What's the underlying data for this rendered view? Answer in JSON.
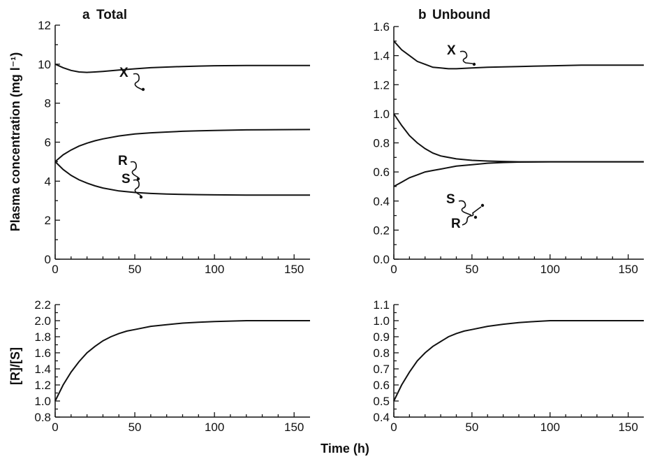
{
  "chart_data": [
    {
      "id": "a-top",
      "type": "line",
      "panel_letter": "a",
      "title": "Total",
      "ylabel": "Plasma concentration (mg l⁻¹)",
      "xlim": [
        0,
        160
      ],
      "ylim": [
        0,
        12
      ],
      "x_ticks": [
        0,
        50,
        100,
        150
      ],
      "y_ticks": [
        0,
        2,
        4,
        6,
        8,
        10,
        12
      ],
      "grid": false,
      "series": [
        {
          "name": "X",
          "x": [
            0,
            5,
            10,
            15,
            20,
            25,
            30,
            40,
            50,
            60,
            70,
            80,
            90,
            100,
            120,
            140,
            160
          ],
          "y": [
            10.0,
            9.82,
            9.68,
            9.6,
            9.58,
            9.6,
            9.63,
            9.7,
            9.76,
            9.82,
            9.85,
            9.88,
            9.9,
            9.92,
            9.93,
            9.93,
            9.93
          ]
        },
        {
          "name": "R",
          "x": [
            0,
            5,
            10,
            15,
            20,
            25,
            30,
            40,
            50,
            60,
            70,
            80,
            90,
            100,
            120,
            140,
            160
          ],
          "y": [
            5.0,
            5.35,
            5.6,
            5.8,
            5.95,
            6.07,
            6.17,
            6.32,
            6.42,
            6.48,
            6.52,
            6.56,
            6.58,
            6.6,
            6.63,
            6.64,
            6.65
          ]
        },
        {
          "name": "S",
          "x": [
            0,
            5,
            10,
            15,
            20,
            25,
            30,
            40,
            50,
            60,
            70,
            80,
            90,
            100,
            120,
            140,
            160
          ],
          "y": [
            5.0,
            4.6,
            4.3,
            4.07,
            3.9,
            3.76,
            3.65,
            3.5,
            3.42,
            3.37,
            3.34,
            3.32,
            3.31,
            3.3,
            3.29,
            3.29,
            3.29
          ]
        }
      ]
    },
    {
      "id": "b-top",
      "type": "line",
      "panel_letter": "b",
      "title": "Unbound",
      "ylabel": "",
      "xlim": [
        0,
        160
      ],
      "ylim": [
        0,
        1.6
      ],
      "x_ticks": [
        0,
        50,
        100,
        150
      ],
      "y_ticks": [
        0.0,
        0.2,
        0.4,
        0.6,
        0.8,
        1.0,
        1.2,
        1.4,
        1.6
      ],
      "y_tick_labels": [
        "0.0",
        "0.2",
        "0.4",
        "0.6",
        "0.8",
        "1.0",
        "1.2",
        "1.4",
        "1.6"
      ],
      "grid": false,
      "series": [
        {
          "name": "X",
          "x": [
            0,
            5,
            10,
            15,
            20,
            25,
            30,
            35,
            40,
            50,
            60,
            80,
            100,
            120,
            140,
            160
          ],
          "y": [
            1.5,
            1.44,
            1.4,
            1.36,
            1.34,
            1.32,
            1.315,
            1.31,
            1.31,
            1.315,
            1.32,
            1.325,
            1.33,
            1.335,
            1.335,
            1.335
          ]
        },
        {
          "name": "S",
          "x": [
            0,
            5,
            10,
            15,
            20,
            25,
            30,
            40,
            50,
            60,
            70,
            80,
            100,
            120,
            140,
            160
          ],
          "y": [
            1.0,
            0.92,
            0.85,
            0.8,
            0.76,
            0.73,
            0.71,
            0.69,
            0.68,
            0.675,
            0.672,
            0.67,
            0.67,
            0.67,
            0.67,
            0.67
          ]
        },
        {
          "name": "R",
          "x": [
            0,
            5,
            10,
            15,
            20,
            25,
            30,
            40,
            50,
            60,
            70,
            80,
            100,
            120,
            140,
            160
          ],
          "y": [
            0.5,
            0.53,
            0.56,
            0.58,
            0.6,
            0.61,
            0.62,
            0.64,
            0.65,
            0.66,
            0.665,
            0.668,
            0.67,
            0.67,
            0.67,
            0.67
          ]
        }
      ]
    },
    {
      "id": "a-bottom",
      "type": "line",
      "ylabel": "[R]/[S]",
      "xlim": [
        0,
        160
      ],
      "ylim": [
        0.8,
        2.2
      ],
      "x_ticks": [
        0,
        50,
        100,
        150
      ],
      "y_ticks": [
        0.8,
        1.0,
        1.2,
        1.4,
        1.6,
        1.8,
        2.0,
        2.2
      ],
      "y_tick_labels": [
        "0.8",
        "1.0",
        "1.2",
        "1.4",
        "1.6",
        "1.8",
        "2.0",
        "2.2"
      ],
      "grid": false,
      "series": [
        {
          "x": [
            0,
            5,
            10,
            15,
            20,
            25,
            30,
            35,
            40,
            45,
            50,
            60,
            70,
            80,
            90,
            100,
            120,
            140,
            160
          ],
          "y": [
            1.0,
            1.2,
            1.36,
            1.49,
            1.6,
            1.68,
            1.75,
            1.8,
            1.84,
            1.87,
            1.89,
            1.93,
            1.95,
            1.97,
            1.98,
            1.99,
            2.0,
            2.0,
            2.0
          ]
        }
      ]
    },
    {
      "id": "b-bottom",
      "type": "line",
      "ylabel": "",
      "xlim": [
        0,
        160
      ],
      "ylim": [
        0.4,
        1.1
      ],
      "x_ticks": [
        0,
        50,
        100,
        150
      ],
      "y_ticks": [
        0.4,
        0.5,
        0.6,
        0.7,
        0.8,
        0.9,
        1.0,
        1.1
      ],
      "y_tick_labels": [
        "0.4",
        "0.5",
        "0.6",
        "0.7",
        "0.8",
        "0.9",
        "1.0",
        "1.1"
      ],
      "grid": false,
      "series": [
        {
          "x": [
            0,
            5,
            10,
            15,
            20,
            25,
            30,
            35,
            40,
            45,
            50,
            60,
            70,
            80,
            90,
            100,
            120,
            140,
            160
          ],
          "y": [
            0.5,
            0.6,
            0.68,
            0.75,
            0.8,
            0.84,
            0.87,
            0.9,
            0.92,
            0.935,
            0.945,
            0.965,
            0.978,
            0.988,
            0.995,
            1.0,
            1.0,
            1.0,
            1.0
          ]
        }
      ]
    }
  ],
  "shared_xlabel": "Time (h)"
}
